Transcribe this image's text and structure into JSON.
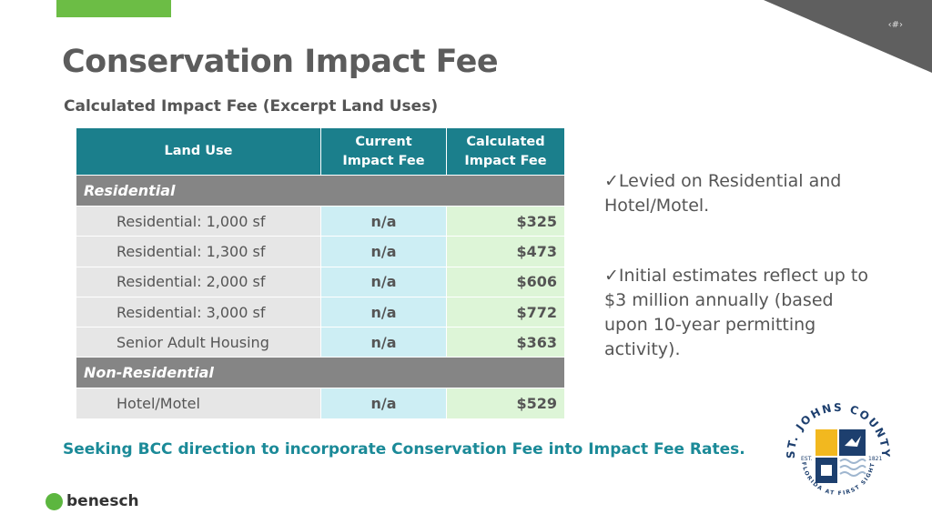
{
  "slide_number": "‹#›",
  "title": "Conservation Impact Fee",
  "subtitle": "Calculated Impact Fee (Excerpt Land Uses)",
  "table": {
    "headers": [
      "Land Use",
      "Current Impact Fee",
      "Calculated Impact Fee"
    ],
    "sections": [
      {
        "name": "Residential",
        "rows": [
          {
            "land_use": "Residential: 1,000 sf",
            "current": "n/a",
            "calculated": "$325"
          },
          {
            "land_use": "Residential: 1,300 sf",
            "current": "n/a",
            "calculated": "$473"
          },
          {
            "land_use": "Residential: 2,000 sf",
            "current": "n/a",
            "calculated": "$606"
          },
          {
            "land_use": "Residential: 3,000 sf",
            "current": "n/a",
            "calculated": "$772"
          },
          {
            "land_use": "Senior Adult Housing",
            "current": "n/a",
            "calculated": "$363"
          }
        ]
      },
      {
        "name": "Non-Residential",
        "rows": [
          {
            "land_use": "Hotel/Motel",
            "current": "n/a",
            "calculated": "$529"
          }
        ]
      }
    ]
  },
  "bullets": [
    "✓Levied on Residential and Hotel/Motel.",
    "✓Initial estimates reflect up to $3 million annually (based upon 10-year permitting activity)."
  ],
  "seeking": "Seeking BCC direction to incorporate Conservation Fee into Impact Fee Rates.",
  "footer_logo": "benesch",
  "county_logo": {
    "name": "ST. JOHNS COUNTY",
    "motto": "FLORIDA AT FIRST SIGHT",
    "est": "EST.",
    "year": "1821"
  }
}
